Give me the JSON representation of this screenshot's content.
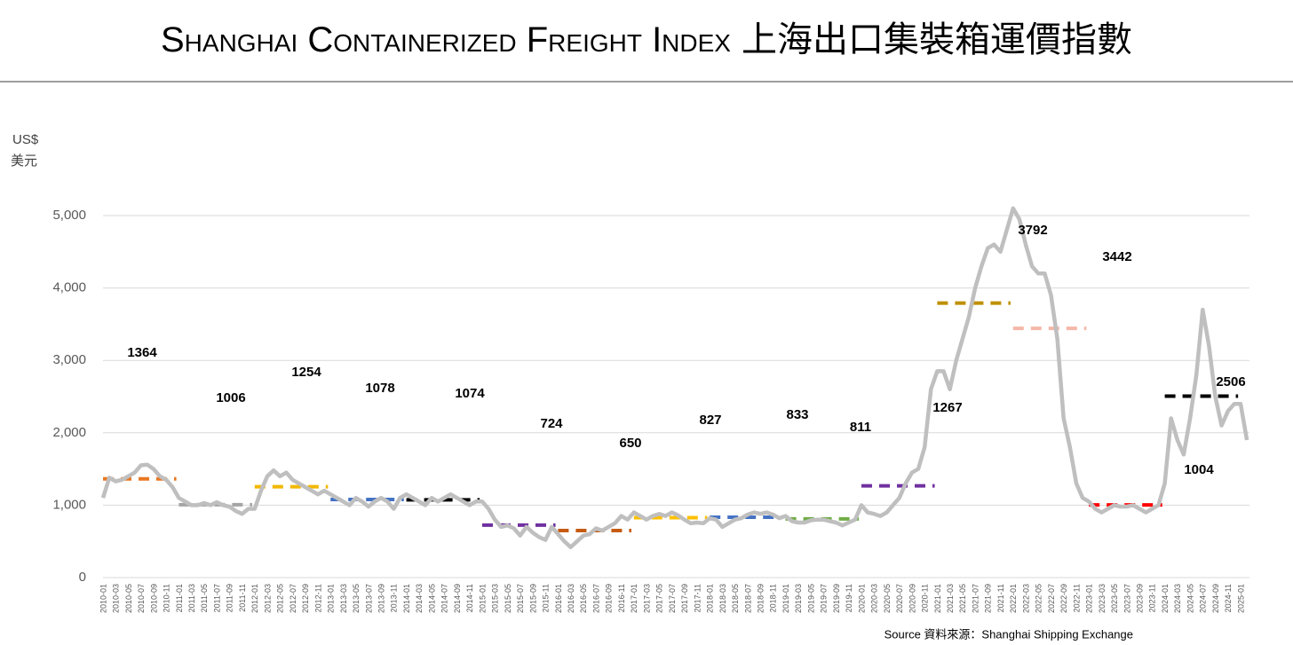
{
  "chart_data": {
    "type": "line",
    "title": "Shanghai Containerized Freight Index",
    "title_zh": "上海出口集裝箱運價指數",
    "y_label": "US$",
    "y_label_zh": "美元",
    "source": "Source 資料來源：Shanghai Shipping Exchange",
    "ylim": [
      0,
      5000
    ],
    "yticks": [
      0,
      {
        "value": 1000,
        "label": "1,000"
      },
      {
        "value": 2000,
        "label": "2,000"
      },
      {
        "value": 3000,
        "label": "3,000"
      },
      {
        "value": 4000,
        "label": "4,000"
      },
      {
        "value": 5000,
        "label": "5,000"
      }
    ],
    "grid": true,
    "categories": [
      "2010-01",
      null,
      "2010-03",
      null,
      "2010-05",
      null,
      "2010-07",
      null,
      "2010-09",
      null,
      "2010-11",
      null,
      "2011-01",
      null,
      "2011-03",
      null,
      "2011-05",
      null,
      "2011-07",
      null,
      "2011-09",
      null,
      "2011-11",
      null,
      "2012-01",
      null,
      "2012-03",
      null,
      "2012-05",
      null,
      "2012-07",
      null,
      "2012-09",
      null,
      "2012-11",
      null,
      "2013-01",
      null,
      "2013-03",
      null,
      "2013-05",
      null,
      "2013-07",
      null,
      "2013-09",
      null,
      "2013-11",
      null,
      "2014-01",
      null,
      "2014-03",
      null,
      "2014-05",
      null,
      "2014-07",
      null,
      "2014-09",
      null,
      "2014-11",
      null,
      "2015-01",
      null,
      "2015-03",
      null,
      "2015-05",
      null,
      "2015-07",
      null,
      "2015-09",
      null,
      "2015-11",
      null,
      "2016-01",
      null,
      "2016-03",
      null,
      "2016-05",
      null,
      "2016-07",
      null,
      "2016-09",
      null,
      "2016-11",
      null,
      "2017-01",
      null,
      "2017-03",
      null,
      "2017-05",
      null,
      "2017-07",
      null,
      "2017-09",
      null,
      "2017-11",
      null,
      "2018-01",
      null,
      "2018-03",
      null,
      "2018-05",
      null,
      "2018-07",
      null,
      "2018-09",
      null,
      "2018-11",
      null,
      "2019-01",
      null,
      "2019-03",
      null,
      "2019-05",
      null,
      "2019-07",
      null,
      "2019-09",
      null,
      "2019-11",
      null,
      "2020-01",
      null,
      "2020-03",
      null,
      "2020-05",
      null,
      "2020-07",
      null,
      "2020-09",
      null,
      "2020-11",
      null,
      "2021-01",
      null,
      "2021-03",
      null,
      "2021-05",
      null,
      "2021-07",
      null,
      "2021-09",
      null,
      "2021-11",
      null,
      "2022-01",
      null,
      "2022-03",
      null,
      "2022-05",
      null,
      "2022-07",
      null,
      "2022-09",
      null,
      "2022-11",
      null,
      "2023-01",
      null,
      "2023-03",
      null,
      "2023-05",
      null,
      "2023-07",
      null,
      "2023-09",
      null,
      "2023-11",
      null,
      "2024-01",
      null,
      "2024-03",
      null,
      "2024-05",
      null,
      "2024-07",
      null,
      "2024-09",
      null,
      "2024-11",
      null,
      "2025-01",
      null
    ],
    "series": [
      {
        "color": "#bfbfbf",
        "values": [
          1100,
          1380,
          1330,
          1350,
          1400,
          1450,
          1550,
          1560,
          1500,
          1400,
          1350,
          1250,
          1100,
          1050,
          1000,
          1000,
          1030,
          1000,
          1040,
          1000,
          980,
          920,
          880,
          950,
          950,
          1200,
          1400,
          1480,
          1400,
          1450,
          1350,
          1300,
          1250,
          1200,
          1150,
          1200,
          1150,
          1100,
          1050,
          1000,
          1100,
          1050,
          980,
          1050,
          1100,
          1050,
          950,
          1100,
          1150,
          1100,
          1050,
          1000,
          1100,
          1050,
          1100,
          1150,
          1100,
          1050,
          1000,
          1050,
          1050,
          950,
          800,
          700,
          720,
          680,
          580,
          700,
          620,
          560,
          520,
          700,
          600,
          500,
          420,
          500,
          580,
          600,
          680,
          650,
          700,
          750,
          850,
          800,
          900,
          850,
          800,
          850,
          880,
          850,
          900,
          860,
          800,
          750,
          760,
          750,
          820,
          800,
          700,
          750,
          800,
          820,
          870,
          900,
          880,
          900,
          870,
          820,
          850,
          780,
          760,
          760,
          790,
          800,
          800,
          780,
          760,
          720,
          760,
          800,
          1000,
          900,
          880,
          850,
          900,
          1000,
          1100,
          1300,
          1450,
          1500,
          1800,
          2600,
          2850,
          2850,
          2600,
          3000,
          3300,
          3600,
          4000,
          4300,
          4550,
          4600,
          4500,
          4800,
          5100,
          4950,
          4600,
          4300,
          4200,
          4200,
          3900,
          3300,
          2200,
          1800,
          1300,
          1100,
          1050,
          950,
          900,
          950,
          1000,
          980,
          980,
          1000,
          950,
          900,
          950,
          1000,
          1300,
          2200,
          1900,
          1700,
          2200,
          2800,
          3700,
          3200,
          2500,
          2100,
          2300,
          2400,
          2400,
          1900
        ]
      }
    ],
    "annual_averages": [
      {
        "value": 1364,
        "color": "#e87722"
      },
      {
        "value": 1006,
        "color": "#a5a5a5"
      },
      {
        "value": 1254,
        "color": "#f2b800"
      },
      {
        "value": 1078,
        "color": "#4472c4"
      },
      {
        "value": 1074,
        "color": "#000000"
      },
      {
        "value": 724,
        "color": "#7030a0"
      },
      {
        "value": 650,
        "color": "#c55a11"
      },
      {
        "value": 827,
        "color": "#ffc000"
      },
      {
        "value": 833,
        "color": "#4472c4"
      },
      {
        "value": 811,
        "color": "#70ad47"
      },
      {
        "value": 1267,
        "color": "#7030a0"
      },
      {
        "value": 3792,
        "color": "#bf9000"
      },
      {
        "value": 3442,
        "color": "#f4b8a8"
      },
      {
        "value": 1004,
        "color": "#ff0000"
      },
      {
        "value": 2506,
        "color": "#000000"
      }
    ]
  }
}
